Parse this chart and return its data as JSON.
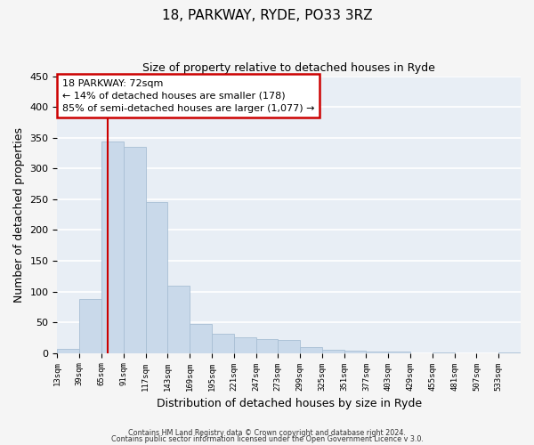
{
  "title": "18, PARKWAY, RYDE, PO33 3RZ",
  "subtitle": "Size of property relative to detached houses in Ryde",
  "xlabel": "Distribution of detached houses by size in Ryde",
  "ylabel": "Number of detached properties",
  "bar_color": "#c9d9ea",
  "bar_edge_color": "#a8bfd4",
  "background_color": "#e8eef5",
  "grid_color": "#ffffff",
  "bins": [
    13,
    39,
    65,
    91,
    117,
    143,
    169,
    195,
    221,
    247,
    273,
    299,
    325,
    351,
    377,
    403,
    429,
    455,
    481,
    507,
    533,
    559
  ],
  "counts": [
    7,
    88,
    344,
    335,
    245,
    110,
    48,
    32,
    26,
    22,
    21,
    10,
    5,
    4,
    3,
    2,
    0,
    1,
    0,
    0,
    1
  ],
  "tick_labels": [
    "13sqm",
    "39sqm",
    "65sqm",
    "91sqm",
    "117sqm",
    "143sqm",
    "169sqm",
    "195sqm",
    "221sqm",
    "247sqm",
    "273sqm",
    "299sqm",
    "325sqm",
    "351sqm",
    "377sqm",
    "403sqm",
    "429sqm",
    "455sqm",
    "481sqm",
    "507sqm",
    "533sqm"
  ],
  "property_size": 72,
  "vline_color": "#cc0000",
  "annotation_box_color": "#cc0000",
  "annotation_text_line1": "18 PARKWAY: 72sqm",
  "annotation_text_line2": "← 14% of detached houses are smaller (178)",
  "annotation_text_line3": "85% of semi-detached houses are larger (1,077) →",
  "ylim": [
    0,
    450
  ],
  "yticks": [
    0,
    50,
    100,
    150,
    200,
    250,
    300,
    350,
    400,
    450
  ],
  "footer1": "Contains HM Land Registry data © Crown copyright and database right 2024.",
  "footer2": "Contains public sector information licensed under the Open Government Licence v 3.0."
}
